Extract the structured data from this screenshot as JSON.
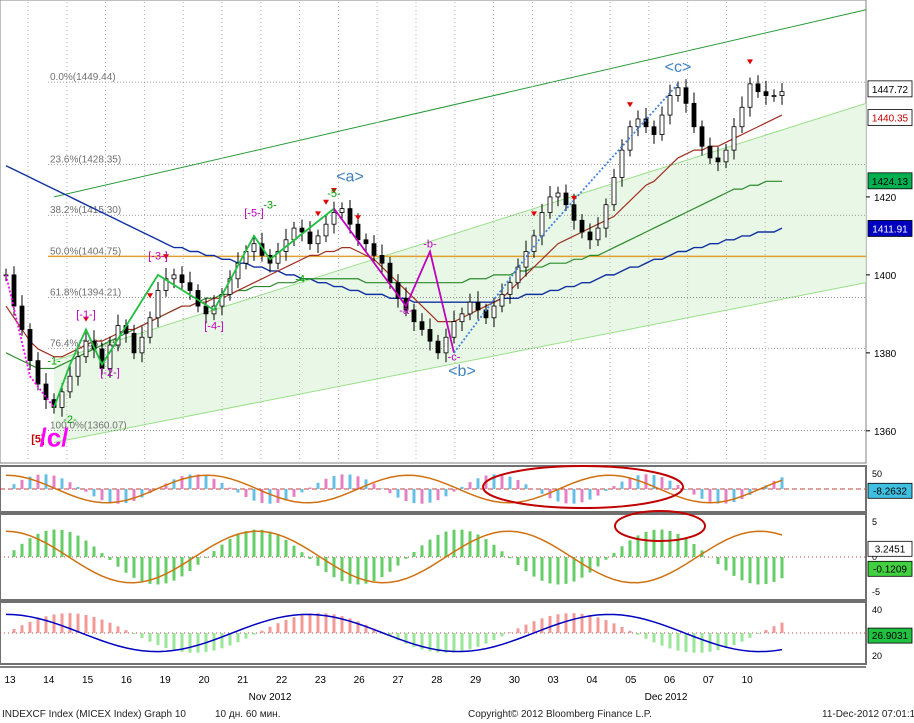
{
  "chart_data": {
    "type": "line",
    "main_panel": {
      "ylim": [
        1352,
        1470
      ],
      "y_ticks": [
        1360,
        1380,
        1400,
        1420
      ],
      "price_tags": [
        {
          "value": 1447.72,
          "text": "1447.72",
          "color": "#ffffff",
          "text_color": "#000000"
        },
        {
          "value": 1440.35,
          "text": "1440.35",
          "color": "#ffffff",
          "text_color": "#c00000"
        },
        {
          "value": 1424.13,
          "text": "1424.13",
          "color": "#00b050",
          "text_color": "#000000"
        },
        {
          "value": 1411.91,
          "text": "1411.91",
          "color": "#0000c0",
          "text_color": "#ffffff"
        }
      ],
      "fib_levels": [
        {
          "label": "0.0%(1449.44)",
          "value": 1449.44
        },
        {
          "label": "23.6%(1428.35)",
          "value": 1428.35
        },
        {
          "label": "38.2%(1415.30)",
          "value": 1415.3
        },
        {
          "label": "50.0%(1404.75)",
          "value": 1404.75
        },
        {
          "label": "61.8%(1394.21)",
          "value": 1394.21
        },
        {
          "label": "76.4%(1381.15)",
          "value": 1381.15
        },
        {
          "label": "100.0%(1360.07)",
          "value": 1360.07
        }
      ],
      "close_series": [
        1400,
        1392,
        1386,
        1378,
        1372,
        1368,
        1366,
        1370,
        1374,
        1379,
        1383,
        1381,
        1376,
        1382,
        1387,
        1385,
        1380,
        1384,
        1389,
        1396,
        1399,
        1400,
        1398,
        1396,
        1392,
        1390,
        1392,
        1395,
        1399,
        1403,
        1406,
        1408,
        1405,
        1403,
        1406,
        1409,
        1412,
        1411,
        1408,
        1410,
        1413,
        1416,
        1417,
        1413,
        1409,
        1408,
        1405,
        1403,
        1398,
        1394,
        1391,
        1388,
        1386,
        1383,
        1380,
        1384,
        1388,
        1390,
        1393,
        1391,
        1389,
        1392,
        1395,
        1398,
        1402,
        1406,
        1410,
        1416,
        1420,
        1421,
        1418,
        1414,
        1411,
        1409,
        1412,
        1418,
        1425,
        1432,
        1438,
        1440,
        1438,
        1436,
        1441,
        1446,
        1448,
        1444,
        1438,
        1433,
        1430,
        1429,
        1432,
        1438,
        1443,
        1449,
        1447,
        1446,
        1446,
        1447
      ],
      "ma_red": [
        1392,
        1389,
        1386,
        1383,
        1381,
        1380,
        1379,
        1379,
        1380,
        1381,
        1382,
        1383,
        1383,
        1384,
        1385,
        1386,
        1386,
        1387,
        1388,
        1389,
        1390,
        1391,
        1392,
        1392,
        1393,
        1393,
        1394,
        1394,
        1395,
        1396,
        1397,
        1398,
        1399,
        1400,
        1401,
        1402,
        1403,
        1404,
        1405,
        1405,
        1406,
        1406,
        1407,
        1407,
        1406,
        1405,
        1404,
        1402,
        1400,
        1398,
        1396,
        1394,
        1392,
        1390,
        1388,
        1388,
        1388,
        1389,
        1390,
        1391,
        1392,
        1393,
        1394,
        1396,
        1398,
        1400,
        1402,
        1404,
        1406,
        1408,
        1409,
        1410,
        1411,
        1412,
        1413,
        1414,
        1415,
        1417,
        1419,
        1421,
        1423,
        1424,
        1426,
        1428,
        1430,
        1431,
        1432,
        1432,
        1433,
        1433,
        1434,
        1435,
        1436,
        1437,
        1438,
        1439,
        1440,
        1441
      ],
      "ma_green": [
        1380,
        1379,
        1378,
        1377,
        1376,
        1376,
        1376,
        1377,
        1378,
        1379,
        1380,
        1381,
        1382,
        1383,
        1384,
        1385,
        1386,
        1387,
        1388,
        1389,
        1390,
        1391,
        1392,
        1392,
        1393,
        1394,
        1394,
        1395,
        1395,
        1396,
        1396,
        1397,
        1397,
        1397,
        1398,
        1398,
        1398,
        1399,
        1399,
        1399,
        1399,
        1399,
        1399,
        1399,
        1399,
        1398,
        1398,
        1398,
        1398,
        1398,
        1398,
        1398,
        1398,
        1398,
        1398,
        1398,
        1398,
        1398,
        1399,
        1399,
        1399,
        1400,
        1400,
        1400,
        1401,
        1401,
        1402,
        1402,
        1403,
        1403,
        1403,
        1404,
        1404,
        1405,
        1405,
        1406,
        1407,
        1408,
        1409,
        1410,
        1411,
        1412,
        1413,
        1414,
        1415,
        1416,
        1417,
        1418,
        1419,
        1420,
        1421,
        1422,
        1422,
        1423,
        1423,
        1424,
        1424,
        1424
      ],
      "ma_blue": [
        1428,
        1427,
        1426,
        1425,
        1424,
        1423,
        1422,
        1421,
        1420,
        1419,
        1418,
        1417,
        1416,
        1415,
        1414,
        1413,
        1412,
        1411,
        1410,
        1409,
        1408,
        1407,
        1407,
        1406,
        1406,
        1405,
        1405,
        1404,
        1404,
        1403,
        1403,
        1402,
        1402,
        1401,
        1401,
        1400,
        1400,
        1399,
        1399,
        1398,
        1398,
        1397,
        1397,
        1396,
        1396,
        1395,
        1395,
        1395,
        1394,
        1394,
        1394,
        1393,
        1393,
        1393,
        1393,
        1393,
        1393,
        1393,
        1393,
        1393,
        1393,
        1393,
        1394,
        1394,
        1394,
        1395,
        1395,
        1395,
        1396,
        1396,
        1397,
        1397,
        1398,
        1398,
        1399,
        1400,
        1400,
        1401,
        1402,
        1402,
        1403,
        1404,
        1404,
        1405,
        1406,
        1406,
        1407,
        1407,
        1408,
        1408,
        1409,
        1409,
        1410,
        1410,
        1411,
        1411,
        1411,
        1412
      ],
      "wave_labels": [
        {
          "text": "[5]",
          "color": "#c00000",
          "i": 4,
          "v": 1357
        },
        {
          "text": "/c/",
          "color": "#ff00ff",
          "i": 6,
          "v": 1356
        },
        {
          "text": "-1-",
          "color": "#00a000",
          "i": 6,
          "v": 1377
        },
        {
          "text": "-2-",
          "color": "#00a000",
          "i": 8,
          "v": 1362
        },
        {
          "text": "[-1-]",
          "color": "#c000c0",
          "i": 10,
          "v": 1389
        },
        {
          "text": "[-2-]",
          "color": "#c000c0",
          "i": 13,
          "v": 1374
        },
        {
          "text": "[-3-]",
          "color": "#c000c0",
          "i": 19,
          "v": 1404
        },
        {
          "text": "[-4-]",
          "color": "#c000c0",
          "i": 26,
          "v": 1386
        },
        {
          "text": "[-5-]",
          "color": "#c000c0",
          "i": 31,
          "v": 1415
        },
        {
          "text": "-3-",
          "color": "#00a000",
          "i": 33,
          "v": 1417
        },
        {
          "text": "-4-",
          "color": "#00a000",
          "i": 37,
          "v": 1398
        },
        {
          "text": "-5-",
          "color": "#00a000",
          "i": 41,
          "v": 1420
        },
        {
          "text": "<a>",
          "color": "#4080c0",
          "i": 43,
          "v": 1424
        },
        {
          "text": "-a-",
          "color": "#c000c0",
          "i": 50,
          "v": 1390
        },
        {
          "text": "-b-",
          "color": "#c000c0",
          "i": 53,
          "v": 1407
        },
        {
          "text": "-c-",
          "color": "#c000c0",
          "i": 56,
          "v": 1378
        },
        {
          "text": "<b>",
          "color": "#4080c0",
          "i": 57,
          "v": 1374
        },
        {
          "text": "<c>",
          "color": "#4080c0",
          "i": 84,
          "v": 1452
        }
      ]
    },
    "x_axis": {
      "tick_labels": [
        "13",
        "14",
        "15",
        "16",
        "19",
        "20",
        "21",
        "22",
        "23",
        "26",
        "27",
        "28",
        "29",
        "30",
        "03",
        "04",
        "05",
        "06",
        "07",
        "10"
      ],
      "month_labels": [
        "Nov 2012",
        "Dec 2012"
      ]
    },
    "indicator_panels": [
      {
        "name": "stochastic",
        "y_ticks": [
          "50"
        ],
        "last_value": "-8.2632"
      },
      {
        "name": "macd",
        "y_ticks": [
          "5",
          "0",
          "-5"
        ],
        "last_values": [
          "3.2451",
          "-0.1209"
        ]
      },
      {
        "name": "dmi",
        "y_ticks": [
          "40",
          "20"
        ],
        "last_value": "26.9031"
      }
    ]
  },
  "footer": {
    "left": "INDEXCF Index (MICEX Index) Graph 10",
    "interval": "10 дн. 60 мин.",
    "copyright": "Copyright© 2012 Bloomberg Finance L.P.",
    "timestamp": "11-Dec-2012 07:01:12"
  }
}
